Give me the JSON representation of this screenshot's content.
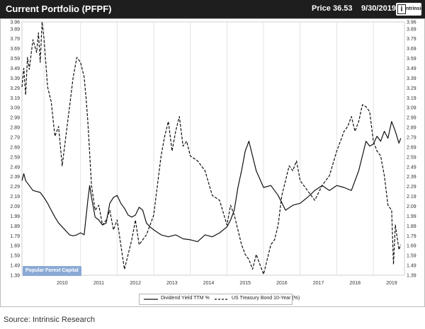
{
  "header": {
    "title": "Current Portfolio (PFPF)",
    "price": "Price 36.53",
    "date": "9/30/2019",
    "logo_text": "ntrinsic"
  },
  "watermark": "Popular Forest Capital",
  "source": "Source: Intrinsic Research",
  "colors": {
    "header_bg": "#1e1e1e",
    "series_line": "#111111",
    "watermark_bg": "#8aa9d6"
  },
  "chart_data": {
    "type": "line",
    "title": "",
    "xlabel": "",
    "ylabel": "",
    "ylim": [
      1.39,
      3.96
    ],
    "xlim": [
      2009.4,
      2019.85
    ],
    "y_ticks": [
      "3.96",
      "3.89",
      "3.79",
      "3.69",
      "3.59",
      "3.49",
      "3.39",
      "3.29",
      "3.19",
      "3.09",
      "2.99",
      "2.89",
      "2.79",
      "2.69",
      "2.59",
      "2.49",
      "2.39",
      "2.29",
      "2.19",
      "2.09",
      "1.99",
      "1.89",
      "1.79",
      "1.69",
      "1.59",
      "1.49",
      "1.39"
    ],
    "x_ticks": [
      "2010",
      "2011",
      "2012",
      "2013",
      "2014",
      "2015",
      "2016",
      "2017",
      "2018",
      "2019"
    ],
    "grid": "vertical",
    "legend_position": "bottom",
    "series": [
      {
        "name": "Dividend Yield TTM %",
        "style": "solid",
        "x": [
          2009.4,
          2009.45,
          2009.5,
          2009.6,
          2009.7,
          2009.8,
          2009.9,
          2010.0,
          2010.1,
          2010.2,
          2010.3,
          2010.4,
          2010.5,
          2010.6,
          2010.7,
          2010.8,
          2010.9,
          2011.0,
          2011.1,
          2011.2,
          2011.25,
          2011.3,
          2011.4,
          2011.5,
          2011.6,
          2011.7,
          2011.8,
          2011.9,
          2012.0,
          2012.1,
          2012.2,
          2012.3,
          2012.4,
          2012.5,
          2012.6,
          2012.7,
          2012.8,
          2012.9,
          2013.0,
          2013.2,
          2013.4,
          2013.6,
          2013.8,
          2014.0,
          2014.2,
          2014.4,
          2014.6,
          2014.8,
          2015.0,
          2015.1,
          2015.2,
          2015.3,
          2015.4,
          2015.5,
          2015.6,
          2015.8,
          2016.0,
          2016.2,
          2016.4,
          2016.6,
          2016.8,
          2017.0,
          2017.2,
          2017.4,
          2017.6,
          2017.8,
          2018.0,
          2018.2,
          2018.4,
          2018.6,
          2018.7,
          2018.8,
          2018.9,
          2019.0,
          2019.1,
          2019.2,
          2019.3,
          2019.4,
          2019.5,
          2019.6,
          2019.7,
          2019.75
        ],
        "y": [
          2.35,
          2.42,
          2.35,
          2.3,
          2.25,
          2.24,
          2.23,
          2.18,
          2.12,
          2.05,
          1.98,
          1.92,
          1.88,
          1.84,
          1.8,
          1.79,
          1.8,
          1.82,
          1.8,
          2.15,
          2.3,
          2.18,
          1.98,
          1.95,
          1.9,
          1.92,
          2.12,
          2.18,
          2.2,
          2.12,
          2.07,
          2.0,
          1.98,
          2.0,
          2.08,
          2.05,
          1.92,
          1.88,
          1.85,
          1.8,
          1.78,
          1.8,
          1.76,
          1.75,
          1.73,
          1.8,
          1.78,
          1.82,
          1.88,
          1.95,
          2.05,
          2.28,
          2.45,
          2.65,
          2.75,
          2.45,
          2.28,
          2.3,
          2.2,
          2.05,
          2.1,
          2.12,
          2.18,
          2.25,
          2.3,
          2.25,
          2.3,
          2.28,
          2.25,
          2.45,
          2.6,
          2.75,
          2.7,
          2.72,
          2.8,
          2.75,
          2.85,
          2.78,
          2.95,
          2.85,
          2.73,
          2.78
        ]
      },
      {
        "name": "US Treasury Bond 10-Year (%)",
        "style": "dashed",
        "x": [
          2009.4,
          2009.45,
          2009.5,
          2009.55,
          2009.6,
          2009.7,
          2009.8,
          2009.85,
          2009.9,
          2009.95,
          2010.0,
          2010.1,
          2010.2,
          2010.3,
          2010.4,
          2010.5,
          2010.6,
          2010.7,
          2010.8,
          2010.9,
          2011.0,
          2011.1,
          2011.15,
          2011.2,
          2011.3,
          2011.4,
          2011.5,
          2011.6,
          2011.7,
          2011.8,
          2011.9,
          2012.0,
          2012.1,
          2012.2,
          2012.3,
          2012.4,
          2012.5,
          2012.6,
          2012.7,
          2012.8,
          2012.9,
          2013.0,
          2013.1,
          2013.2,
          2013.3,
          2013.4,
          2013.5,
          2013.6,
          2013.7,
          2013.8,
          2013.9,
          2014.0,
          2014.2,
          2014.4,
          2014.6,
          2014.8,
          2015.0,
          2015.1,
          2015.2,
          2015.3,
          2015.4,
          2015.5,
          2015.6,
          2015.7,
          2015.8,
          2015.9,
          2016.0,
          2016.1,
          2016.2,
          2016.3,
          2016.4,
          2016.5,
          2016.6,
          2016.7,
          2016.8,
          2016.9,
          2017.0,
          2017.2,
          2017.4,
          2017.6,
          2017.8,
          2018.0,
          2018.1,
          2018.2,
          2018.3,
          2018.4,
          2018.5,
          2018.6,
          2018.7,
          2018.8,
          2018.9,
          2019.0,
          2019.1,
          2019.2,
          2019.3,
          2019.4,
          2019.5,
          2019.55,
          2019.6,
          2019.7,
          2019.75
        ],
        "y": [
          3.3,
          3.49,
          3.22,
          3.6,
          3.48,
          3.78,
          3.65,
          3.85,
          3.55,
          3.96,
          3.8,
          3.3,
          3.15,
          2.8,
          2.9,
          2.5,
          2.8,
          3.1,
          3.4,
          3.6,
          3.55,
          3.4,
          3.2,
          2.95,
          2.3,
          2.05,
          2.1,
          1.9,
          1.95,
          2.05,
          1.85,
          1.95,
          1.7,
          1.45,
          1.6,
          1.75,
          1.95,
          1.7,
          1.75,
          1.8,
          1.9,
          2.0,
          2.3,
          2.6,
          2.8,
          2.95,
          2.65,
          2.85,
          3.0,
          2.7,
          2.75,
          2.6,
          2.55,
          2.45,
          2.2,
          2.15,
          1.9,
          2.1,
          2.0,
          1.85,
          1.7,
          1.6,
          1.55,
          1.45,
          1.6,
          1.5,
          1.4,
          1.55,
          1.7,
          1.75,
          1.9,
          2.2,
          2.35,
          2.5,
          2.45,
          2.55,
          2.35,
          2.25,
          2.15,
          2.3,
          2.4,
          2.65,
          2.75,
          2.85,
          2.9,
          3.0,
          2.85,
          2.95,
          3.12,
          3.1,
          3.05,
          2.75,
          2.65,
          2.6,
          2.4,
          2.1,
          2.05,
          1.5,
          1.9,
          1.65,
          1.7
        ]
      }
    ]
  },
  "legend": [
    {
      "label": "Dividend Yield TTM %"
    },
    {
      "label": "US Treasury Bond 10-Year (%)"
    }
  ]
}
